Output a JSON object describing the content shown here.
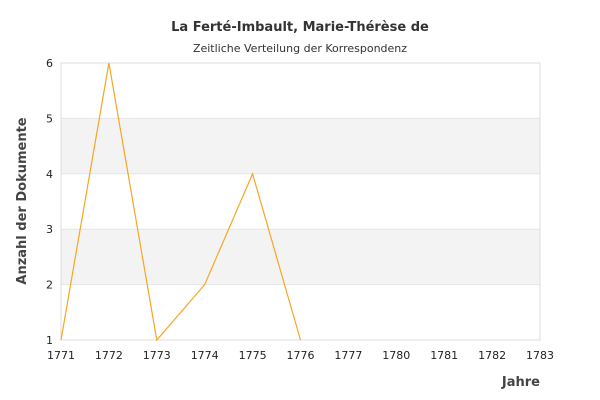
{
  "chart_data": {
    "type": "line",
    "title": "La Ferté-Imbault, Marie-Thérèse de",
    "subtitle": "Zeitliche Verteilung der Korrespondenz",
    "xlabel": "Jahre",
    "ylabel": "Anzahl der Dokumente",
    "categories": [
      "1771",
      "1772",
      "1773",
      "1774",
      "1775",
      "1776",
      "1777",
      "1780",
      "1781",
      "1782",
      "1783"
    ],
    "series": [
      {
        "values": [
          1,
          6,
          1,
          2,
          4,
          1,
          null,
          null,
          null,
          null,
          null
        ]
      }
    ],
    "ylim": [
      1,
      6
    ],
    "yticks": [
      1,
      2,
      3,
      4,
      5,
      6
    ],
    "grid": "alternating horizontal bands",
    "legend": "none",
    "colors": {
      "line": "#f5a623",
      "band": "#f3f3f3",
      "frame": "#dddddd",
      "gridline": "#e6e6e6"
    }
  }
}
